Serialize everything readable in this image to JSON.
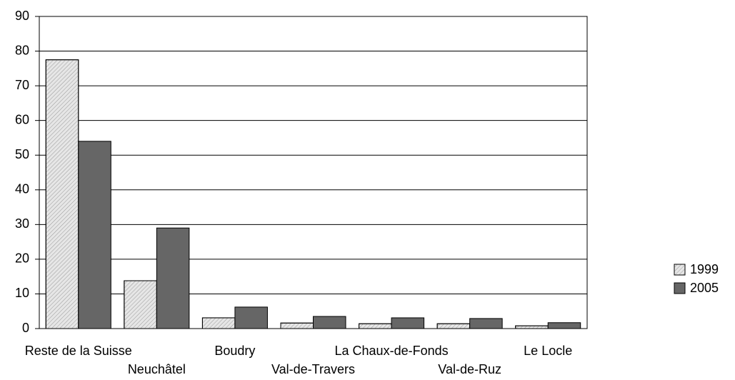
{
  "chart_data": {
    "type": "bar",
    "categories": [
      "Reste de la Suisse",
      "Neuchâtel",
      "Boudry",
      "Val-de-Travers",
      "La Chaux-de-Fonds",
      "Val-de-Ruz",
      "Le Locle"
    ],
    "series": [
      {
        "name": "1999",
        "color": "#e6e6e6",
        "values": [
          77.5,
          13.8,
          3.1,
          1.6,
          1.4,
          1.4,
          0.8
        ]
      },
      {
        "name": "2005",
        "color": "#666666",
        "values": [
          54,
          29,
          6.2,
          3.5,
          3.1,
          2.9,
          1.7
        ]
      }
    ],
    "ylim": [
      0,
      90
    ],
    "yticks": [
      0,
      10,
      20,
      30,
      40,
      50,
      60,
      70,
      80,
      90
    ],
    "grid": true,
    "legend": "right"
  }
}
